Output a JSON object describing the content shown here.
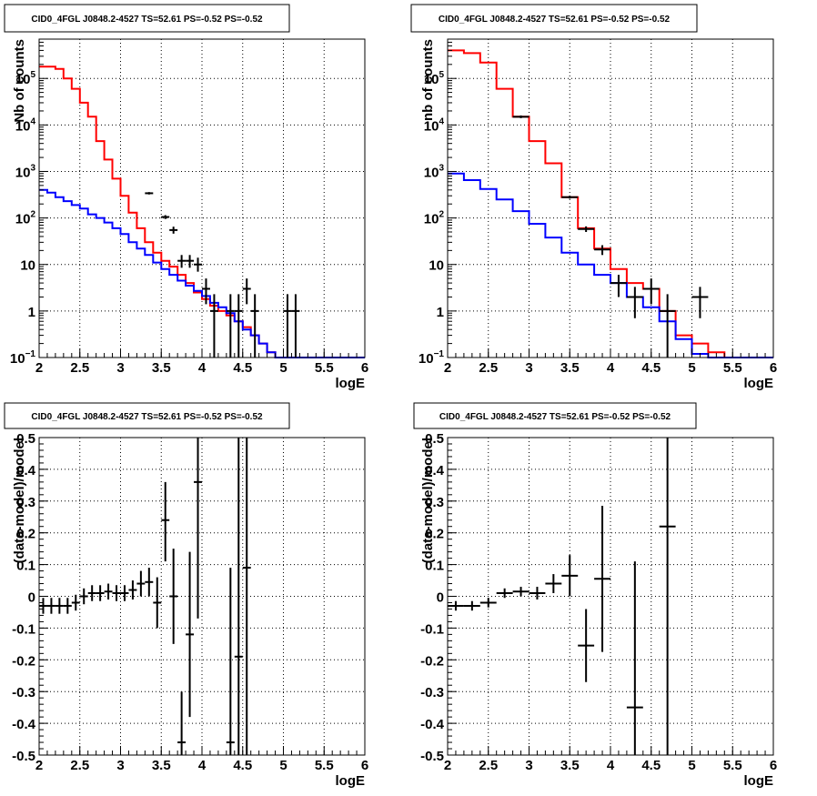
{
  "chart_data": [
    {
      "id": "p1",
      "type": "line",
      "title": "CID0_4FGL J0848.2-4527 TS=52.61 PS=-0.52 PS=-0.52",
      "xlabel": "logE",
      "ylabel": "Nb of counts",
      "xlim": [
        2,
        6
      ],
      "ylim": [
        0.1,
        700000
      ],
      "ylog": true,
      "grid": true,
      "xticks": [
        2,
        2.5,
        3,
        3.5,
        4,
        4.5,
        5,
        5.5,
        6
      ],
      "yticks": [
        {
          "value": 0.1,
          "base": "10",
          "exp": "−1"
        },
        {
          "value": 1,
          "base": "1",
          "exp": ""
        },
        {
          "value": 10,
          "base": "10",
          "exp": ""
        },
        {
          "value": 100,
          "base": "10",
          "exp": "2"
        },
        {
          "value": 1000,
          "base": "10",
          "exp": "3"
        },
        {
          "value": 10000,
          "base": "10",
          "exp": "4"
        },
        {
          "value": 100000,
          "base": "10",
          "exp": "5"
        }
      ],
      "bin_edges": [
        2.0,
        2.1,
        2.2,
        2.3,
        2.4,
        2.5,
        2.6,
        2.7,
        2.8,
        2.9,
        3.0,
        3.1,
        3.2,
        3.3,
        3.4,
        3.5,
        3.6,
        3.7,
        3.8,
        3.9,
        4.0,
        4.1,
        4.2,
        4.3,
        4.4,
        4.5,
        4.6,
        4.7,
        4.8,
        4.9,
        5.0,
        5.1,
        5.2,
        5.3,
        5.4,
        5.5,
        5.6,
        5.7,
        5.8,
        5.9,
        6.0
      ],
      "series": [
        {
          "color": "#ff0000",
          "values": [
            180000,
            180000,
            160000,
            100000,
            60000,
            30000,
            15000,
            4500,
            1800,
            700,
            300,
            130,
            60,
            30,
            18,
            12,
            9,
            6,
            4,
            2.5,
            1.8,
            1.3,
            1.0,
            0.8,
            0.6,
            0.45,
            0.3,
            0.2,
            0.13,
            0.1,
            0.1,
            0.1,
            0.1,
            0.1,
            0.1,
            0.1,
            0.1,
            0.1,
            0.1,
            0.1
          ]
        },
        {
          "color": "#0000ff",
          "values": [
            400,
            350,
            280,
            230,
            190,
            160,
            120,
            100,
            80,
            60,
            45,
            30,
            22,
            16,
            11,
            8,
            6,
            4.5,
            3.5,
            2.7,
            2.1,
            1.5,
            1.2,
            0.9,
            0.6,
            0.4,
            0.3,
            0.2,
            0.13,
            0.1,
            0.1,
            0.1,
            0.1,
            0.1,
            0.1,
            0.1,
            0.1,
            0.1,
            0.1,
            0.1
          ]
        }
      ],
      "points": [
        {
          "x": 3.35,
          "xerr": 0.05,
          "y": 340,
          "ylo": 320,
          "yhi": 360
        },
        {
          "x": 3.55,
          "xerr": 0.05,
          "y": 105,
          "ylo": 95,
          "yhi": 115
        },
        {
          "x": 3.65,
          "xerr": 0.05,
          "y": 55,
          "ylo": 46,
          "yhi": 65
        },
        {
          "x": 3.75,
          "xerr": 0.05,
          "y": 12,
          "ylo": 8.5,
          "yhi": 16
        },
        {
          "x": 3.85,
          "xerr": 0.05,
          "y": 12,
          "ylo": 8.5,
          "yhi": 16
        },
        {
          "x": 3.95,
          "xerr": 0.05,
          "y": 10,
          "ylo": 7,
          "yhi": 14
        },
        {
          "x": 4.05,
          "xerr": 0.05,
          "y": 3,
          "ylo": 1.4,
          "yhi": 5
        },
        {
          "x": 4.15,
          "xerr": 0.05,
          "y": 1,
          "ylo": 0.1,
          "yhi": 2.3
        },
        {
          "x": 4.35,
          "xerr": 0.05,
          "y": 1,
          "ylo": 0.1,
          "yhi": 2.3
        },
        {
          "x": 4.45,
          "xerr": 0.05,
          "y": 1,
          "ylo": 0.1,
          "yhi": 2.3
        },
        {
          "x": 4.55,
          "xerr": 0.05,
          "y": 3,
          "ylo": 1.4,
          "yhi": 5
        },
        {
          "x": 4.65,
          "xerr": 0.05,
          "y": 1,
          "ylo": 0.1,
          "yhi": 2.3
        },
        {
          "x": 5.05,
          "xerr": 0.05,
          "y": 1,
          "ylo": 0.1,
          "yhi": 2.3
        },
        {
          "x": 5.15,
          "xerr": 0.05,
          "y": 1,
          "ylo": 0.1,
          "yhi": 2.3
        }
      ]
    },
    {
      "id": "p2",
      "type": "line",
      "title": "CID0_4FGL J0848.2-4527 TS=52.61 PS=-0.52 PS=-0.52",
      "xlabel": "logE",
      "ylabel": "nb of counts",
      "xlim": [
        2,
        6
      ],
      "ylim": [
        0.1,
        700000
      ],
      "ylog": true,
      "grid": true,
      "xticks": [
        2,
        2.5,
        3,
        3.5,
        4,
        4.5,
        5,
        5.5,
        6
      ],
      "yticks": [
        {
          "value": 0.1,
          "base": "10",
          "exp": "−1"
        },
        {
          "value": 1,
          "base": "1",
          "exp": ""
        },
        {
          "value": 10,
          "base": "10",
          "exp": ""
        },
        {
          "value": 100,
          "base": "10",
          "exp": "2"
        },
        {
          "value": 1000,
          "base": "10",
          "exp": "3"
        },
        {
          "value": 10000,
          "base": "10",
          "exp": "4"
        },
        {
          "value": 100000,
          "base": "10",
          "exp": "5"
        }
      ],
      "bin_edges": [
        2.0,
        2.2,
        2.4,
        2.6,
        2.8,
        3.0,
        3.2,
        3.4,
        3.6,
        3.8,
        4.0,
        4.2,
        4.4,
        4.6,
        4.8,
        5.0,
        5.2,
        5.4,
        5.6,
        5.8,
        6.0
      ],
      "series": [
        {
          "color": "#ff0000",
          "values": [
            400000,
            350000,
            220000,
            60000,
            15000,
            4500,
            1500,
            280,
            60,
            22,
            8,
            4,
            3,
            1,
            0.3,
            0.2,
            0.13,
            0.1,
            0.1,
            0.1
          ]
        },
        {
          "color": "#0000ff",
          "values": [
            900,
            650,
            420,
            250,
            140,
            75,
            38,
            18,
            10,
            6,
            4,
            2,
            1.2,
            0.6,
            0.25,
            0.12,
            0.1,
            0.1,
            0.1,
            0.1
          ]
        }
      ],
      "points": [
        {
          "x": 2.9,
          "xerr": 0.1,
          "y": 15000,
          "ylo": 14000,
          "yhi": 16000
        },
        {
          "x": 3.5,
          "xerr": 0.1,
          "y": 280,
          "ylo": 260,
          "yhi": 300
        },
        {
          "x": 3.7,
          "xerr": 0.1,
          "y": 58,
          "ylo": 50,
          "yhi": 66
        },
        {
          "x": 3.9,
          "xerr": 0.1,
          "y": 21,
          "ylo": 16,
          "yhi": 26
        },
        {
          "x": 4.1,
          "xerr": 0.1,
          "y": 4,
          "ylo": 2,
          "yhi": 6
        },
        {
          "x": 4.3,
          "xerr": 0.1,
          "y": 2,
          "ylo": 0.7,
          "yhi": 3.3
        },
        {
          "x": 4.5,
          "xerr": 0.1,
          "y": 3,
          "ylo": 1.4,
          "yhi": 5
        },
        {
          "x": 4.7,
          "xerr": 0.1,
          "y": 1,
          "ylo": 0.1,
          "yhi": 2.3
        },
        {
          "x": 5.1,
          "xerr": 0.1,
          "y": 2,
          "ylo": 0.7,
          "yhi": 3.3
        }
      ]
    },
    {
      "id": "p3",
      "type": "scatter",
      "title": "CID0_4FGL J0848.2-4527 TS=52.61 PS=-0.52 PS=-0.52",
      "xlabel": "logE",
      "ylabel": "(data-model)/model",
      "xlim": [
        2,
        6
      ],
      "ylim": [
        -0.5,
        0.5
      ],
      "ylog": false,
      "grid": true,
      "xticks": [
        2,
        2.5,
        3,
        3.5,
        4,
        4.5,
        5,
        5.5,
        6
      ],
      "ytick_values": [
        -0.5,
        -0.4,
        -0.3,
        -0.2,
        -0.1,
        0,
        0.1,
        0.2,
        0.3,
        0.4,
        0.5
      ],
      "points": [
        {
          "x": 2.05,
          "xerr": 0.05,
          "y": -0.03,
          "ylo": -0.055,
          "yhi": -0.005
        },
        {
          "x": 2.15,
          "xerr": 0.05,
          "y": -0.03,
          "ylo": -0.055,
          "yhi": -0.005
        },
        {
          "x": 2.25,
          "xerr": 0.05,
          "y": -0.03,
          "ylo": -0.055,
          "yhi": -0.005
        },
        {
          "x": 2.35,
          "xerr": 0.05,
          "y": -0.03,
          "ylo": -0.055,
          "yhi": -0.005
        },
        {
          "x": 2.45,
          "xerr": 0.05,
          "y": -0.02,
          "ylo": -0.045,
          "yhi": 0.005
        },
        {
          "x": 2.55,
          "xerr": 0.05,
          "y": 0.0,
          "ylo": -0.025,
          "yhi": 0.025
        },
        {
          "x": 2.65,
          "xerr": 0.05,
          "y": 0.01,
          "ylo": -0.015,
          "yhi": 0.035
        },
        {
          "x": 2.75,
          "xerr": 0.05,
          "y": 0.01,
          "ylo": -0.015,
          "yhi": 0.035
        },
        {
          "x": 2.85,
          "xerr": 0.05,
          "y": 0.015,
          "ylo": -0.01,
          "yhi": 0.04
        },
        {
          "x": 2.95,
          "xerr": 0.05,
          "y": 0.01,
          "ylo": -0.015,
          "yhi": 0.035
        },
        {
          "x": 3.05,
          "xerr": 0.05,
          "y": 0.01,
          "ylo": -0.015,
          "yhi": 0.035
        },
        {
          "x": 3.15,
          "xerr": 0.05,
          "y": 0.02,
          "ylo": -0.01,
          "yhi": 0.05
        },
        {
          "x": 3.25,
          "xerr": 0.05,
          "y": 0.04,
          "ylo": 0.0,
          "yhi": 0.08
        },
        {
          "x": 3.35,
          "xerr": 0.05,
          "y": 0.045,
          "ylo": 0.0,
          "yhi": 0.09
        },
        {
          "x": 3.45,
          "xerr": 0.05,
          "y": -0.02,
          "ylo": -0.1,
          "yhi": 0.06
        },
        {
          "x": 3.55,
          "xerr": 0.05,
          "y": 0.24,
          "ylo": 0.11,
          "yhi": 0.36
        },
        {
          "x": 3.65,
          "xerr": 0.05,
          "y": 0.0,
          "ylo": -0.15,
          "yhi": 0.15
        },
        {
          "x": 3.75,
          "xerr": 0.05,
          "y": -0.46,
          "ylo": -0.5,
          "yhi": -0.3
        },
        {
          "x": 3.85,
          "xerr": 0.05,
          "y": -0.12,
          "ylo": -0.38,
          "yhi": 0.14
        },
        {
          "x": 3.95,
          "xerr": 0.05,
          "y": 0.36,
          "ylo": -0.07,
          "yhi": 0.5
        },
        {
          "x": 4.35,
          "xerr": 0.05,
          "y": -0.46,
          "ylo": -0.5,
          "yhi": 0.09
        },
        {
          "x": 4.45,
          "xerr": 0.05,
          "y": -0.19,
          "ylo": -0.5,
          "yhi": 0.5
        },
        {
          "x": 4.55,
          "xerr": 0.05,
          "y": 0.09,
          "ylo": -0.5,
          "yhi": 0.5
        }
      ]
    },
    {
      "id": "p4",
      "type": "scatter",
      "title": "CID0_4FGL J0848.2-4527 TS=52.61 PS=-0.52 PS=-0.52",
      "xlabel": "logE",
      "ylabel": "(data-model)/model",
      "xlim": [
        2,
        6
      ],
      "ylim": [
        -0.5,
        0.5
      ],
      "ylog": false,
      "grid": true,
      "xticks": [
        2,
        2.5,
        3,
        3.5,
        4,
        4.5,
        5,
        5.5,
        6
      ],
      "ytick_values": [
        -0.5,
        -0.4,
        -0.3,
        -0.2,
        -0.1,
        0,
        0.1,
        0.2,
        0.3,
        0.4,
        0.5
      ],
      "points": [
        {
          "x": 2.1,
          "xerr": 0.1,
          "y": -0.03,
          "ylo": -0.045,
          "yhi": -0.015
        },
        {
          "x": 2.3,
          "xerr": 0.1,
          "y": -0.03,
          "ylo": -0.045,
          "yhi": -0.015
        },
        {
          "x": 2.5,
          "xerr": 0.1,
          "y": -0.02,
          "ylo": -0.035,
          "yhi": -0.005
        },
        {
          "x": 2.7,
          "xerr": 0.1,
          "y": 0.01,
          "ylo": -0.005,
          "yhi": 0.025
        },
        {
          "x": 2.9,
          "xerr": 0.1,
          "y": 0.015,
          "ylo": 0.0,
          "yhi": 0.03
        },
        {
          "x": 3.1,
          "xerr": 0.1,
          "y": 0.01,
          "ylo": -0.01,
          "yhi": 0.03
        },
        {
          "x": 3.3,
          "xerr": 0.1,
          "y": 0.04,
          "ylo": 0.01,
          "yhi": 0.07
        },
        {
          "x": 3.5,
          "xerr": 0.1,
          "y": 0.065,
          "ylo": 0.0,
          "yhi": 0.13
        },
        {
          "x": 3.7,
          "xerr": 0.1,
          "y": -0.155,
          "ylo": -0.27,
          "yhi": -0.04
        },
        {
          "x": 3.9,
          "xerr": 0.1,
          "y": 0.055,
          "ylo": -0.175,
          "yhi": 0.285
        },
        {
          "x": 4.3,
          "xerr": 0.1,
          "y": -0.35,
          "ylo": -0.5,
          "yhi": 0.11
        },
        {
          "x": 4.7,
          "xerr": 0.1,
          "y": 0.22,
          "ylo": -0.5,
          "yhi": 0.5
        }
      ]
    }
  ]
}
